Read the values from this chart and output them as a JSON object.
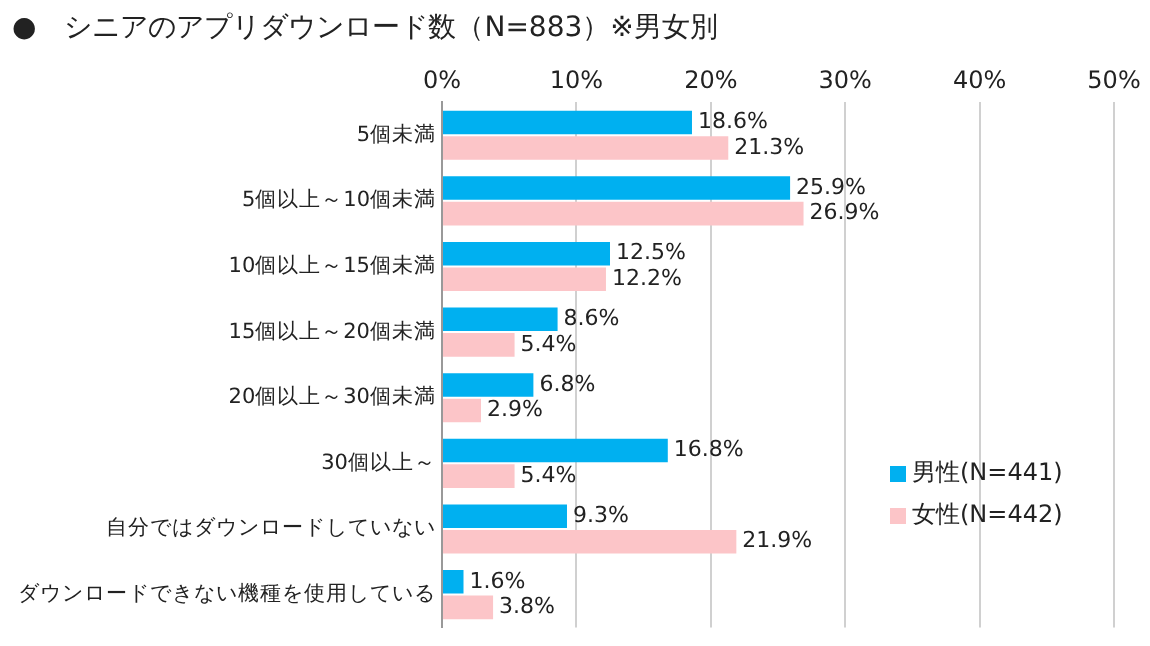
{
  "chart_data": {
    "type": "bar",
    "orientation": "horizontal",
    "title": "●　シニアのアプリダウンロード数（N=883）※男女別",
    "categories": [
      "5個未満",
      "5個以上～10個未満",
      "10個以上～15個未満",
      "15個以上～20個未満",
      "20個以上～30個未満",
      "30個以上～",
      "自分ではダウンロードしていない",
      "ダウンロードできない機種を使用している"
    ],
    "series": [
      {
        "name": "男性(N=441)",
        "color": "#00b0f0",
        "values": [
          18.6,
          25.9,
          12.5,
          8.6,
          6.8,
          16.8,
          9.3,
          1.6
        ],
        "value_labels": [
          "18.6%",
          "25.9%",
          "12.5%",
          "8.6%",
          "6.8%",
          "16.8%",
          "9.3%",
          "1.6%"
        ]
      },
      {
        "name": "女性(N=442)",
        "color": "#fcc5c8",
        "values": [
          21.3,
          26.9,
          12.2,
          5.4,
          2.9,
          5.4,
          21.9,
          3.8
        ],
        "value_labels": [
          "21.3%",
          "26.9%",
          "12.2%",
          "5.4%",
          "2.9%",
          "5.4%",
          "21.9%",
          "3.8%"
        ]
      }
    ],
    "xlim": [
      0,
      50
    ],
    "xticks": [
      {
        "value": 0,
        "label": "0%"
      },
      {
        "value": 10,
        "label": "10%"
      },
      {
        "value": 20,
        "label": "20%"
      },
      {
        "value": 30,
        "label": "30%"
      },
      {
        "value": 40,
        "label": "40%"
      },
      {
        "value": 50,
        "label": "50%"
      }
    ],
    "grid": "x",
    "legend": "right"
  }
}
